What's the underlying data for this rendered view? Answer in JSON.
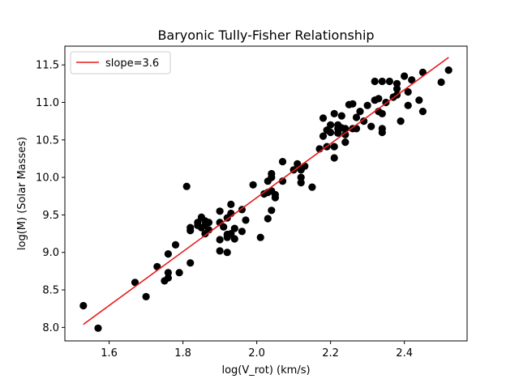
{
  "chart_data": {
    "type": "scatter",
    "title": "Baryonic Tully-Fisher Relationship",
    "xlabel": "log(V_rot) (km/s)",
    "ylabel": "log(M) (Solar Masses)",
    "xlim": [
      1.48,
      2.57
    ],
    "ylim": [
      7.82,
      11.75
    ],
    "xticks": [
      "1.6",
      "1.8",
      "2.0",
      "2.2",
      "2.4"
    ],
    "yticks": [
      "8.0",
      "8.5",
      "9.0",
      "9.5",
      "10.0",
      "10.5",
      "11.0",
      "11.5"
    ],
    "grid": false,
    "legend_position": "top-left",
    "colors": {
      "points": "#000000",
      "fit_line": "#e6191c"
    },
    "series": [
      {
        "kind": "points",
        "points": [
          [
            1.53,
            8.29
          ],
          [
            1.57,
            7.99
          ],
          [
            1.67,
            8.6
          ],
          [
            1.7,
            8.41
          ],
          [
            1.73,
            8.81
          ],
          [
            1.75,
            8.62
          ],
          [
            1.76,
            8.66
          ],
          [
            1.76,
            8.73
          ],
          [
            1.76,
            8.98
          ],
          [
            1.78,
            9.1
          ],
          [
            1.79,
            8.73
          ],
          [
            1.81,
            9.88
          ],
          [
            1.82,
            8.86
          ],
          [
            1.82,
            9.29
          ],
          [
            1.82,
            9.33
          ],
          [
            1.84,
            9.36
          ],
          [
            1.84,
            9.4
          ],
          [
            1.85,
            9.33
          ],
          [
            1.85,
            9.47
          ],
          [
            1.86,
            9.25
          ],
          [
            1.86,
            9.36
          ],
          [
            1.86,
            9.42
          ],
          [
            1.87,
            9.3
          ],
          [
            1.87,
            9.4
          ],
          [
            1.9,
            9.17
          ],
          [
            1.9,
            9.02
          ],
          [
            1.9,
            9.4
          ],
          [
            1.9,
            9.55
          ],
          [
            1.91,
            9.34
          ],
          [
            1.92,
            9.0
          ],
          [
            1.92,
            9.24
          ],
          [
            1.92,
            9.46
          ],
          [
            1.92,
            9.2
          ],
          [
            1.93,
            9.25
          ],
          [
            1.93,
            9.52
          ],
          [
            1.93,
            9.64
          ],
          [
            1.94,
            9.18
          ],
          [
            1.94,
            9.32
          ],
          [
            1.96,
            9.57
          ],
          [
            1.96,
            9.28
          ],
          [
            1.97,
            9.43
          ],
          [
            1.99,
            9.9
          ],
          [
            2.01,
            9.2
          ],
          [
            2.02,
            9.78
          ],
          [
            2.03,
            9.45
          ],
          [
            2.03,
            9.8
          ],
          [
            2.03,
            9.95
          ],
          [
            2.04,
            9.56
          ],
          [
            2.04,
            9.82
          ],
          [
            2.04,
            10.0
          ],
          [
            2.04,
            10.05
          ],
          [
            2.05,
            9.73
          ],
          [
            2.05,
            9.77
          ],
          [
            2.07,
            9.95
          ],
          [
            2.07,
            10.21
          ],
          [
            2.1,
            10.1
          ],
          [
            2.11,
            10.18
          ],
          [
            2.12,
            9.93
          ],
          [
            2.12,
            10.0
          ],
          [
            2.12,
            10.1
          ],
          [
            2.13,
            10.15
          ],
          [
            2.15,
            9.87
          ],
          [
            2.17,
            10.38
          ],
          [
            2.18,
            10.55
          ],
          [
            2.18,
            10.79
          ],
          [
            2.19,
            10.41
          ],
          [
            2.19,
            10.63
          ],
          [
            2.2,
            10.6
          ],
          [
            2.2,
            10.7
          ],
          [
            2.21,
            10.26
          ],
          [
            2.21,
            10.41
          ],
          [
            2.21,
            10.85
          ],
          [
            2.22,
            10.59
          ],
          [
            2.22,
            10.65
          ],
          [
            2.22,
            10.7
          ],
          [
            2.23,
            10.66
          ],
          [
            2.23,
            10.82
          ],
          [
            2.24,
            10.47
          ],
          [
            2.24,
            10.57
          ],
          [
            2.24,
            10.65
          ],
          [
            2.25,
            10.97
          ],
          [
            2.26,
            10.65
          ],
          [
            2.26,
            10.98
          ],
          [
            2.27,
            10.65
          ],
          [
            2.27,
            10.8
          ],
          [
            2.28,
            10.88
          ],
          [
            2.29,
            10.75
          ],
          [
            2.3,
            10.96
          ],
          [
            2.31,
            10.68
          ],
          [
            2.32,
            11.03
          ],
          [
            2.32,
            11.28
          ],
          [
            2.33,
            10.88
          ],
          [
            2.33,
            11.05
          ],
          [
            2.34,
            10.6
          ],
          [
            2.34,
            10.65
          ],
          [
            2.34,
            10.85
          ],
          [
            2.34,
            11.28
          ],
          [
            2.35,
            11.0
          ],
          [
            2.36,
            11.28
          ],
          [
            2.37,
            11.07
          ],
          [
            2.38,
            11.1
          ],
          [
            2.38,
            11.18
          ],
          [
            2.38,
            11.25
          ],
          [
            2.39,
            10.75
          ],
          [
            2.4,
            11.35
          ],
          [
            2.41,
            10.96
          ],
          [
            2.41,
            11.14
          ],
          [
            2.42,
            11.3
          ],
          [
            2.44,
            11.03
          ],
          [
            2.45,
            11.4
          ],
          [
            2.45,
            10.88
          ],
          [
            2.5,
            11.27
          ],
          [
            2.52,
            11.43
          ]
        ]
      },
      {
        "kind": "line",
        "name": "slope=3.6",
        "points": [
          [
            1.53,
            8.04
          ],
          [
            2.52,
            11.6
          ]
        ]
      }
    ]
  }
}
